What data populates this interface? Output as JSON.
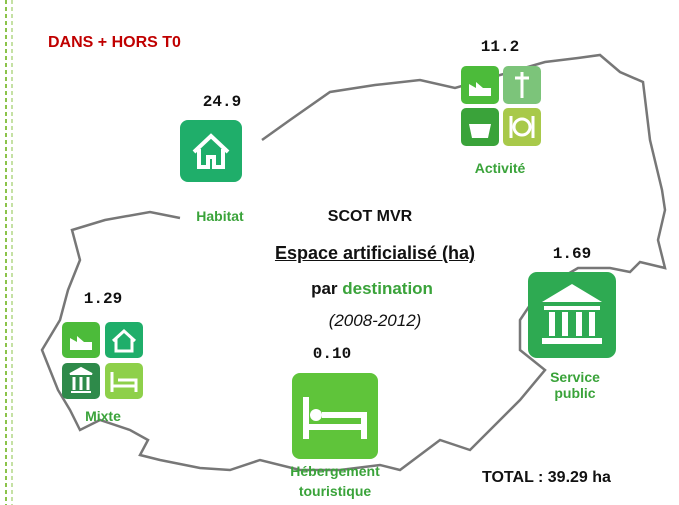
{
  "header": "DANS + HORS T0",
  "center": {
    "title": "SCOT MVR",
    "subtitle": "Espace artificialisé (ha)",
    "by": "par",
    "by_highlight": "destination",
    "period": "(2008-2012)"
  },
  "items": [
    {
      "label": "Habitat",
      "value": "24.9"
    },
    {
      "label": "Activité",
      "value": "11.2"
    },
    {
      "label": "Service public",
      "value": "1.69"
    },
    {
      "label": "Mixte",
      "value": "1.29"
    },
    {
      "label": "Hébergement touristique",
      "value": "0.10"
    }
  ],
  "total": "TOTAL : 39.29 ha"
}
